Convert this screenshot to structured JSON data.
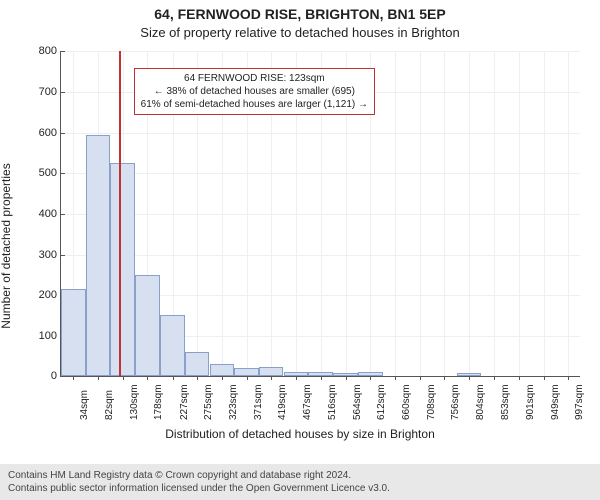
{
  "header": {
    "title": "64, FERNWOOD RISE, BRIGHTON, BN1 5EP",
    "subtitle": "Size of property relative to detached houses in Brighton"
  },
  "chart": {
    "type": "histogram",
    "ylabel": "Number of detached properties",
    "xlabel": "Distribution of detached houses by size in Brighton",
    "ylim": [
      0,
      800
    ],
    "ytick_step": 100,
    "yticks": [
      0,
      100,
      200,
      300,
      400,
      500,
      600,
      700,
      800
    ],
    "xticks": [
      "34sqm",
      "82sqm",
      "130sqm",
      "178sqm",
      "227sqm",
      "275sqm",
      "323sqm",
      "371sqm",
      "419sqm",
      "467sqm",
      "516sqm",
      "564sqm",
      "612sqm",
      "660sqm",
      "708sqm",
      "756sqm",
      "804sqm",
      "853sqm",
      "901sqm",
      "949sqm",
      "997sqm"
    ],
    "xtick_positions": [
      34,
      82,
      130,
      178,
      227,
      275,
      323,
      371,
      419,
      467,
      516,
      564,
      612,
      660,
      708,
      756,
      804,
      853,
      901,
      949,
      997
    ],
    "x_min": 10,
    "x_max": 1020,
    "bars": [
      {
        "x0": 10,
        "x1": 58,
        "count": 215
      },
      {
        "x0": 58,
        "x1": 106,
        "count": 595
      },
      {
        "x0": 106,
        "x1": 154,
        "count": 525
      },
      {
        "x0": 154,
        "x1": 202,
        "count": 250
      },
      {
        "x0": 202,
        "x1": 251,
        "count": 150
      },
      {
        "x0": 251,
        "x1": 299,
        "count": 60
      },
      {
        "x0": 299,
        "x1": 347,
        "count": 30
      },
      {
        "x0": 347,
        "x1": 395,
        "count": 20
      },
      {
        "x0": 395,
        "x1": 443,
        "count": 22
      },
      {
        "x0": 443,
        "x1": 491,
        "count": 12
      },
      {
        "x0": 491,
        "x1": 540,
        "count": 10
      },
      {
        "x0": 540,
        "x1": 588,
        "count": 8
      },
      {
        "x0": 588,
        "x1": 636,
        "count": 10
      },
      {
        "x0": 636,
        "x1": 684,
        "count": 0
      },
      {
        "x0": 684,
        "x1": 732,
        "count": 0
      },
      {
        "x0": 732,
        "x1": 780,
        "count": 0
      },
      {
        "x0": 780,
        "x1": 828,
        "count": 8
      },
      {
        "x0": 828,
        "x1": 877,
        "count": 0
      },
      {
        "x0": 877,
        "x1": 925,
        "count": 0
      },
      {
        "x0": 925,
        "x1": 973,
        "count": 0
      },
      {
        "x0": 973,
        "x1": 1020,
        "count": 0
      }
    ],
    "bar_fill": "#d6e0f0",
    "bar_stroke": "#8aa0c8",
    "grid_color": "#eceff3",
    "axis_color": "#555555",
    "background_color": "#ffffff",
    "marker": {
      "x": 123,
      "color": "#c23030"
    },
    "info_box": {
      "line1": "64 FERNWOOD RISE: 123sqm",
      "line2": "← 38% of detached houses are smaller (695)",
      "line3": "61% of semi-detached houses are larger (1,121) →",
      "border_color": "#c23030",
      "left_pct": 14,
      "top_pct": 5
    },
    "tick_fontsize": 11,
    "label_fontsize": 12
  },
  "footer": {
    "line1": "Contains HM Land Registry data © Crown copyright and database right 2024.",
    "line2": "Contains public sector information licensed under the Open Government Licence v3.0."
  }
}
